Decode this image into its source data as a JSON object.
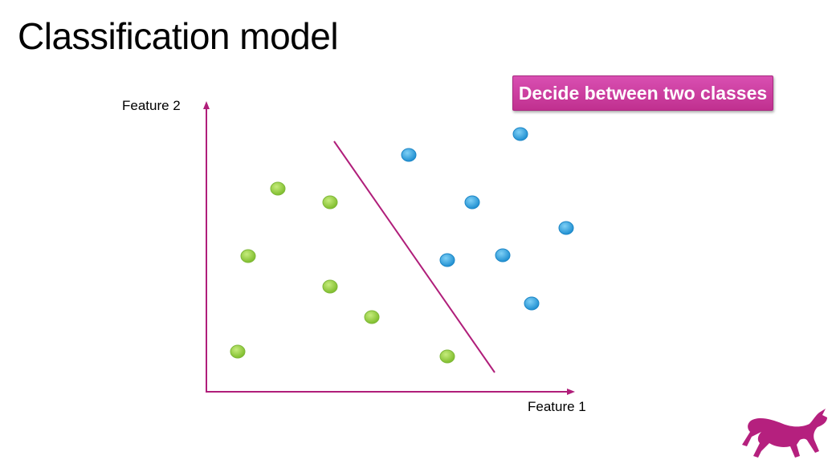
{
  "title": "Classification model",
  "callout": "Decide between two classes",
  "axes": {
    "y_label": "Feature 2",
    "x_label": "Feature 1"
  },
  "colors": {
    "axis": "#b01e7a",
    "boundary": "#b01e7a",
    "class_green": "#8fcc3c",
    "class_blue": "#2aa1de",
    "callout": "#cc3e9f",
    "logo": "#b5207e"
  },
  "logo": {
    "icon": "running-dog-icon"
  }
}
